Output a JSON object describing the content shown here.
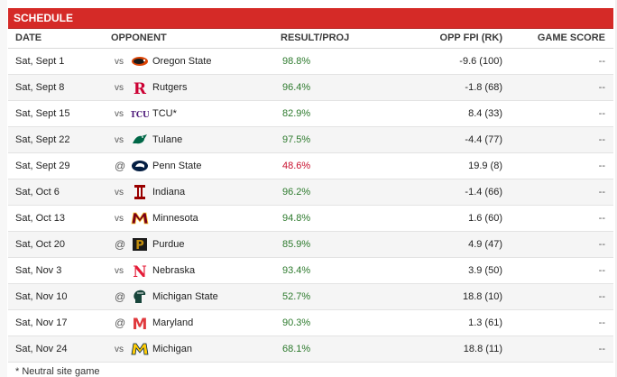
{
  "header": {
    "title": "SCHEDULE"
  },
  "columns": {
    "date": "DATE",
    "opponent": "OPPONENT",
    "result": "RESULT/PROJ",
    "fpi": "OPP FPI (RK)",
    "score": "GAME SCORE"
  },
  "games": [
    {
      "date": "Sat, Sept 1",
      "loc": "vs",
      "team": "Oregon State",
      "logo": "oregon-state-logo",
      "result": "98.8%",
      "fpi": "-9.6 (100)",
      "score": "--"
    },
    {
      "date": "Sat, Sept 8",
      "loc": "vs",
      "team": "Rutgers",
      "logo": "rutgers-logo",
      "result": "96.4%",
      "fpi": "-1.8 (68)",
      "score": "--"
    },
    {
      "date": "Sat, Sept 15",
      "loc": "vs",
      "team": "TCU*",
      "logo": "tcu-logo",
      "result": "82.9%",
      "fpi": "8.4 (33)",
      "score": "--"
    },
    {
      "date": "Sat, Sept 22",
      "loc": "vs",
      "team": "Tulane",
      "logo": "tulane-logo",
      "result": "97.5%",
      "fpi": "-4.4 (77)",
      "score": "--"
    },
    {
      "date": "Sat, Sept 29",
      "loc": "@",
      "team": "Penn State",
      "logo": "penn-state-logo",
      "result": "48.6%",
      "fpi": "19.9 (8)",
      "score": "--"
    },
    {
      "date": "Sat, Oct 6",
      "loc": "vs",
      "team": "Indiana",
      "logo": "indiana-logo",
      "result": "96.2%",
      "fpi": "-1.4 (66)",
      "score": "--"
    },
    {
      "date": "Sat, Oct 13",
      "loc": "vs",
      "team": "Minnesota",
      "logo": "minnesota-logo",
      "result": "94.8%",
      "fpi": "1.6 (60)",
      "score": "--"
    },
    {
      "date": "Sat, Oct 20",
      "loc": "@",
      "team": "Purdue",
      "logo": "purdue-logo",
      "result": "85.9%",
      "fpi": "4.9 (47)",
      "score": "--"
    },
    {
      "date": "Sat, Nov 3",
      "loc": "vs",
      "team": "Nebraska",
      "logo": "nebraska-logo",
      "result": "93.4%",
      "fpi": "3.9 (50)",
      "score": "--"
    },
    {
      "date": "Sat, Nov 10",
      "loc": "@",
      "team": "Michigan State",
      "logo": "michigan-state-logo",
      "result": "52.7%",
      "fpi": "18.8 (10)",
      "score": "--"
    },
    {
      "date": "Sat, Nov 17",
      "loc": "@",
      "team": "Maryland",
      "logo": "maryland-logo",
      "result": "90.3%",
      "fpi": "1.3 (61)",
      "score": "--"
    },
    {
      "date": "Sat, Nov 24",
      "loc": "vs",
      "team": "Michigan",
      "logo": "michigan-logo",
      "result": "68.1%",
      "fpi": "18.8 (11)",
      "score": "--"
    }
  ],
  "footnote": "* Neutral site game",
  "colors": {
    "header_red": "#d52a27",
    "win_green": "#2d7a2d",
    "loss_red": "#c8102e"
  }
}
